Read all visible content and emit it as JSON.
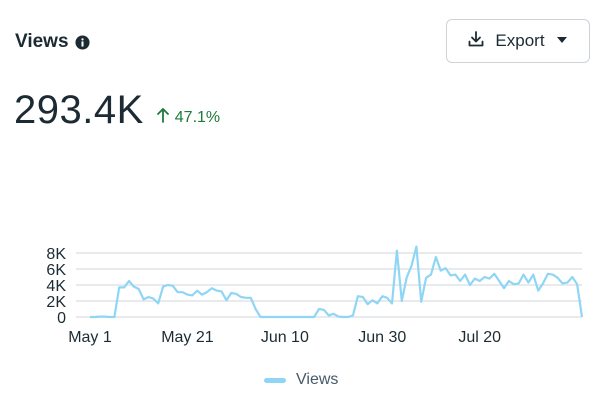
{
  "header": {
    "title": "Views",
    "info_icon": "info-circle-icon",
    "export_label": "Export",
    "export_icon": "download-icon",
    "dropdown_icon": "caret-down-icon"
  },
  "metric": {
    "value": "293.4K",
    "change": "47.1%",
    "change_direction": "up",
    "change_color": "#1d7a3a"
  },
  "chart_data": {
    "type": "line",
    "title": "",
    "xlabel": "",
    "ylabel": "",
    "x_tick_labels": [
      "May 1",
      "May 21",
      "Jun 10",
      "Jun 30",
      "Jul 20"
    ],
    "x_tick_days": [
      0,
      20,
      40,
      60,
      80
    ],
    "y_ticks": [
      0,
      2000,
      4000,
      6000,
      8000
    ],
    "y_tick_labels": [
      "0",
      "2K",
      "4K",
      "6K",
      "8K"
    ],
    "ylim": [
      0,
      9000
    ],
    "grid": true,
    "legend_position": "bottom",
    "colors": {
      "line": "#8fd6f5",
      "grid": "#d9dee2"
    },
    "series": [
      {
        "name": "Views",
        "values": [
          0,
          0,
          50,
          50,
          0,
          0,
          3700,
          3700,
          4500,
          3800,
          3500,
          2200,
          2500,
          2300,
          1700,
          3800,
          4000,
          3900,
          3100,
          3100,
          2800,
          2700,
          3300,
          2800,
          3100,
          3600,
          3300,
          3200,
          2100,
          3000,
          2900,
          2500,
          2400,
          2400,
          1000,
          0,
          0,
          0,
          0,
          0,
          0,
          0,
          0,
          0,
          0,
          0,
          0,
          1000,
          900,
          200,
          400,
          50,
          0,
          0,
          200,
          2600,
          2500,
          1600,
          2100,
          1700,
          2600,
          2400,
          1700,
          8300,
          2000,
          4900,
          6400,
          8800,
          1900,
          4900,
          5300,
          7500,
          5800,
          6100,
          5200,
          5300,
          4500,
          5300,
          4000,
          4800,
          4500,
          5000,
          4800,
          5400,
          4500,
          3600,
          4500,
          4100,
          4200,
          5300,
          4300,
          5300,
          3300,
          4200,
          5400,
          5300,
          4900,
          4200,
          4300,
          5000,
          4100,
          0
        ]
      }
    ]
  }
}
